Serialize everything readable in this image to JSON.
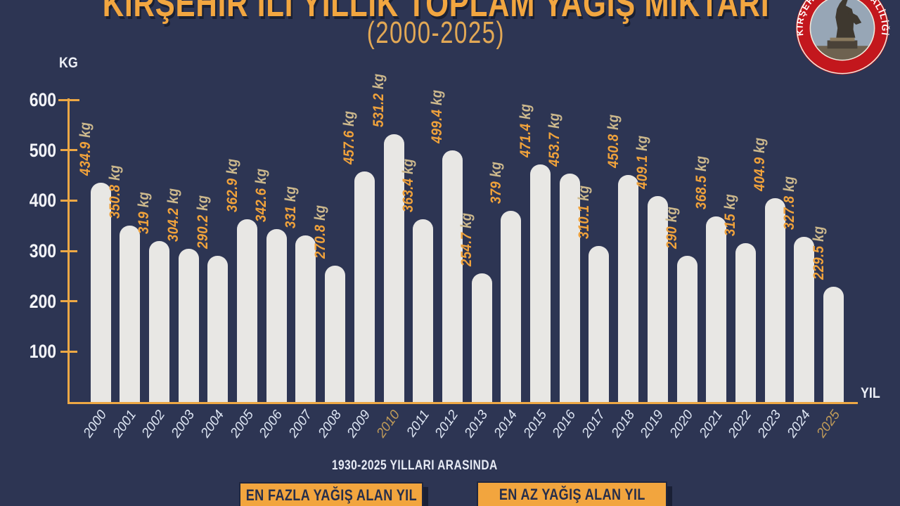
{
  "title": "KIRŞEHİR İLİ YILLIK TOPLAM YAĞIŞ MİKTARI",
  "subtitle": "(2000-2025)",
  "logo": {
    "text": "KIRŞEHİR VALİLİĞİ"
  },
  "axis": {
    "y_unit": "KG",
    "x_unit": "YIL",
    "y_ticks": [
      600,
      500,
      400,
      300,
      200,
      100
    ]
  },
  "footer": {
    "note": "1930-2025 YILLARI ARASINDA",
    "legend_max": "EN FAZLA YAĞIŞ ALAN YIL",
    "legend_min": "EN AZ YAĞIŞ ALAN YIL"
  },
  "colors": {
    "background": "#2d3553",
    "bar": "#e8e7e4",
    "accent": "#f0a43c",
    "value_unit": "#cdb98d",
    "year_label": "#dde5f3",
    "year_highlight": "#c09b59",
    "tick_label": "#f3f4f8",
    "legend_text": "#262e4b"
  },
  "chart_data": {
    "type": "bar",
    "title": "KIRŞEHİR İLİ YILLIK TOPLAM YAĞIŞ MİKTARI (2000-2025)",
    "xlabel": "YIL",
    "ylabel": "KG",
    "unit": "kg",
    "ylim": [
      0,
      600
    ],
    "grid": false,
    "x": [
      "2000",
      "2001",
      "2002",
      "2003",
      "2004",
      "2005",
      "2006",
      "2007",
      "2008",
      "2009",
      "2010",
      "2011",
      "2012",
      "2013",
      "2014",
      "2015",
      "2016",
      "2017",
      "2018",
      "2019",
      "2020",
      "2021",
      "2022",
      "2023",
      "2024",
      "2025"
    ],
    "values": [
      434.9,
      350.8,
      319,
      304.2,
      290.2,
      362.9,
      342.6,
      331,
      270.8,
      457.6,
      531.2,
      363.4,
      499.4,
      254.7,
      379,
      471.4,
      453.7,
      310.1,
      450.8,
      409.1,
      290,
      368.5,
      315,
      404.9,
      327.8,
      229.5
    ],
    "highlight_max_year": "2010",
    "highlight_min_year": "2025"
  }
}
